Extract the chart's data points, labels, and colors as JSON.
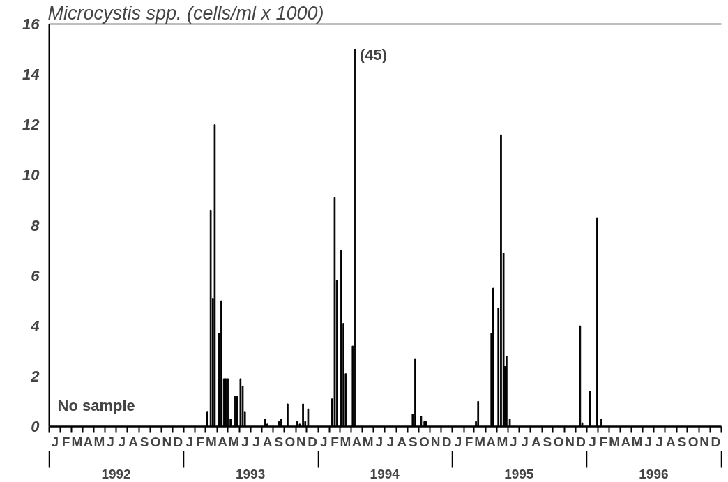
{
  "chart_data": {
    "type": "bar",
    "title": "Microcystis spp. (cells/ml x 1000)",
    "x": [
      "1993-03-06",
      "1993-03-15",
      "1993-03-21",
      "1993-03-26",
      "1993-04-07",
      "1993-04-13",
      "1993-04-20",
      "1993-04-25",
      "1993-05-01",
      "1993-05-08",
      "1993-05-20",
      "1993-05-25",
      "1993-06-04",
      "1993-06-10",
      "1993-06-16",
      "1993-08-10",
      "1993-08-16",
      "1993-09-17",
      "1993-09-23",
      "1993-10-10",
      "1993-11-05",
      "1993-11-12",
      "1993-11-21",
      "1993-11-27",
      "1993-12-05",
      "1994-02-08",
      "1994-02-15",
      "1994-02-21",
      "1994-03-05",
      "1994-03-11",
      "1994-03-17",
      "1994-04-05",
      "1994-04-11",
      "1994-09-15",
      "1994-09-22",
      "1994-10-08",
      "1994-10-17",
      "1994-10-22",
      "1995-03-06",
      "1995-03-12",
      "1995-04-17",
      "1995-04-22",
      "1995-05-06",
      "1995-05-13",
      "1995-05-20",
      "1995-05-24",
      "1995-05-28",
      "1995-06-06",
      "1995-12-14",
      "1995-12-20",
      "1996-01-09",
      "1996-01-29",
      "1996-02-10"
    ],
    "series": [
      {
        "color": "#000000",
        "values": [
          0.6,
          8.6,
          5.1,
          12.0,
          3.7,
          5.0,
          1.9,
          1.9,
          1.9,
          0.3,
          1.2,
          1.2,
          1.9,
          1.6,
          0.6,
          0.3,
          0.1,
          0.2,
          0.3,
          0.9,
          0.2,
          0.1,
          0.9,
          0.2,
          0.7,
          1.1,
          9.1,
          5.8,
          7.0,
          4.1,
          2.1,
          3.2,
          15.0,
          0.5,
          2.7,
          0.4,
          0.2,
          0.2,
          0.2,
          1.0,
          3.7,
          5.5,
          4.7,
          11.6,
          6.9,
          2.4,
          2.8,
          0.3,
          4.0,
          0.15,
          1.4,
          8.3,
          0.3
        ]
      }
    ],
    "ylim": [
      0,
      16
    ],
    "yticks": [
      0,
      2,
      4,
      6,
      8,
      10,
      12,
      14,
      16
    ],
    "xlim": [
      "1992-01-01",
      "1997-01-01"
    ],
    "xticks": [
      {
        "value": "1992-07-01",
        "label": "1992"
      },
      {
        "value": "1993-07-01",
        "label": "1993"
      },
      {
        "value": "1994-07-01",
        "label": "1994"
      },
      {
        "value": "1995-07-01",
        "label": "1995"
      },
      {
        "value": "1996-07-01",
        "label": "1996"
      }
    ],
    "annotations": [
      "(45)",
      "No sample",
      "J",
      "F",
      "M",
      "A",
      "M",
      "J",
      "J",
      "A",
      "S",
      "O",
      "N",
      "D",
      "J",
      "F",
      "M",
      "A",
      "M",
      "J",
      "J",
      "A",
      "S",
      "O",
      "N",
      "D",
      "J",
      "F",
      "M",
      "A",
      "M",
      "J",
      "J",
      "A",
      "S",
      "O",
      "N",
      "D",
      "J",
      "F",
      "M",
      "A",
      "M",
      "J",
      "J",
      "A",
      "S",
      "O",
      "N",
      "D",
      "J",
      "F",
      "M",
      "A",
      "M",
      "J",
      "J",
      "A",
      "S",
      "O",
      "N",
      "D"
    ],
    "grid": false
  }
}
